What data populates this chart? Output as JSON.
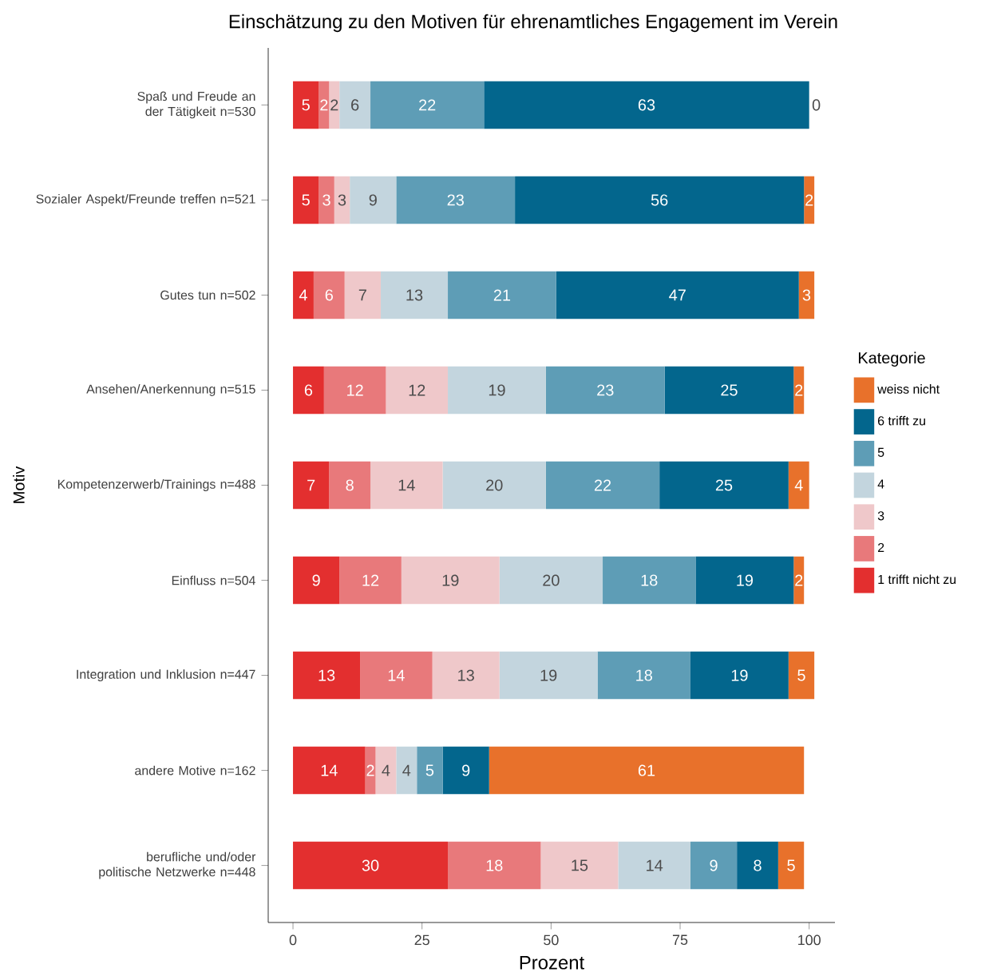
{
  "chart_data": {
    "type": "bar",
    "orientation": "horizontal",
    "stacked": true,
    "title": "Einschätzung zu den Motiven für ehrenamtliches Engagement im Verein",
    "xlabel": "Prozent",
    "ylabel": "Motiv",
    "legend_title": "Kategorie",
    "legend": "right",
    "data_labels": true,
    "xlim": [
      -4.8,
      105
    ],
    "xticks": [
      0,
      25,
      50,
      75,
      100
    ],
    "categories": [
      "Spaß und Freude an der Tätigkeit n=530",
      "Sozialer Aspekt/Freunde treffen n=521",
      "Gutes tun n=502",
      "Ansehen/Anerkennung n=515",
      "Kompetenzerwerb/Trainings n=488",
      "Einfluss n=504",
      "Integration und Inklusion n=447",
      "andere Motive n=162",
      "berufliche und/oder politische Netzwerke n=448"
    ],
    "series": [
      {
        "name": "1 trifft nicht zu",
        "color": "#e32f2f",
        "values": [
          5,
          5,
          4,
          6,
          7,
          9,
          13,
          14,
          30
        ]
      },
      {
        "name": "2",
        "color": "#e8797b",
        "values": [
          2,
          3,
          6,
          12,
          8,
          12,
          14,
          2,
          18
        ]
      },
      {
        "name": "3",
        "color": "#efc8ca",
        "values": [
          2,
          3,
          7,
          12,
          14,
          19,
          13,
          4,
          15
        ]
      },
      {
        "name": "4",
        "color": "#c3d5de",
        "values": [
          6,
          9,
          13,
          19,
          20,
          20,
          19,
          4,
          14
        ]
      },
      {
        "name": "5",
        "color": "#5e9db6",
        "values": [
          22,
          23,
          21,
          23,
          22,
          18,
          18,
          5,
          9
        ]
      },
      {
        "name": "6 trifft zu",
        "color": "#03668d",
        "values": [
          63,
          56,
          47,
          25,
          25,
          19,
          19,
          9,
          8
        ]
      },
      {
        "name": "weiss nicht",
        "color": "#e8712b",
        "values": [
          0,
          2,
          3,
          2,
          4,
          2,
          5,
          61,
          5
        ]
      }
    ]
  }
}
